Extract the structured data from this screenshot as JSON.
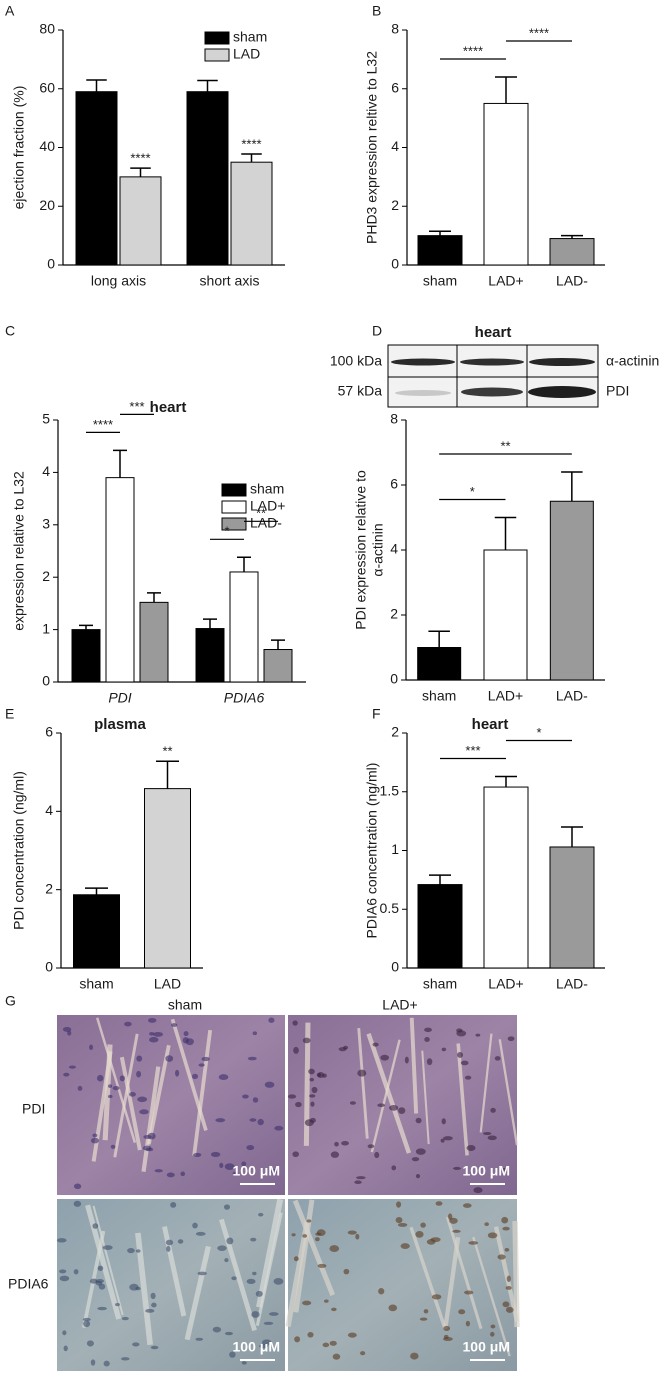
{
  "chart_data": [
    {
      "type": "bar",
      "panel": "A",
      "ylabel": "ejection fraction (%)",
      "categories": [
        "long axis",
        "short axis"
      ],
      "series": [
        {
          "name": "sham",
          "color": "#000000",
          "values": [
            59,
            59
          ],
          "errors": [
            4,
            3.8
          ]
        },
        {
          "name": "LAD",
          "color": "#d3d3d3",
          "values": [
            30,
            35
          ],
          "errors": [
            3,
            2.8
          ]
        }
      ],
      "ylim": [
        0,
        80
      ],
      "yticks": [
        0,
        20,
        40,
        60,
        80
      ],
      "legend": "upper right",
      "annotations": [
        {
          "text": "****",
          "category": 0,
          "series": 1
        },
        {
          "text": "****",
          "category": 1,
          "series": 1
        }
      ]
    },
    {
      "type": "bar",
      "panel": "B",
      "ylabel": "PHD3 expression reltive to L32",
      "categories": [
        "sham",
        "LAD+",
        "LAD-"
      ],
      "series": [
        {
          "colors": [
            "#000000",
            "#ffffff",
            "#9a9a9a"
          ],
          "values": [
            1,
            5.5,
            0.9
          ],
          "errors": [
            0.15,
            0.9,
            0.1
          ]
        }
      ],
      "ylim": [
        0,
        8
      ],
      "yticks": [
        0,
        2,
        4,
        6,
        8
      ],
      "annotations": [
        {
          "text": "****",
          "from": 0,
          "to": 1
        },
        {
          "text": "****",
          "from": 1,
          "to": 2
        }
      ]
    },
    {
      "type": "bar",
      "panel": "C",
      "title": "heart",
      "ylabel": "expression relative to L32",
      "categories": [
        "PDI",
        "PDIA6"
      ],
      "series": [
        {
          "name": "sham",
          "color": "#000000",
          "values": [
            1,
            1.02
          ],
          "errors": [
            0.08,
            0.18
          ]
        },
        {
          "name": "LAD+",
          "color": "#ffffff",
          "values": [
            3.9,
            2.1
          ],
          "errors": [
            0.52,
            0.28
          ]
        },
        {
          "name": "LAD-",
          "color": "#9a9a9a",
          "values": [
            1.52,
            0.62
          ],
          "errors": [
            0.18,
            0.18
          ]
        }
      ],
      "ylim": [
        0,
        5
      ],
      "yticks": [
        0,
        1,
        2,
        3,
        4,
        5
      ],
      "legend": "upper right",
      "annotations": [
        {
          "text": "****",
          "category": 0,
          "from": 0,
          "to": 1
        },
        {
          "text": "***",
          "category": 0,
          "from": 1,
          "to": 2
        },
        {
          "text": "*",
          "category": 1,
          "from": 0,
          "to": 1
        },
        {
          "text": "**",
          "category": 1,
          "from": 1,
          "to": 2
        }
      ]
    },
    {
      "type": "bar",
      "panel": "D",
      "title": "heart",
      "ylabel": [
        "PDI expression relative to",
        "α-actinin"
      ],
      "blot": [
        {
          "size": "100 kDa",
          "protein": "α-actinin"
        },
        {
          "size": "57 kDa",
          "protein": "PDI"
        }
      ],
      "categories": [
        "sham",
        "LAD+",
        "LAD-"
      ],
      "series": [
        {
          "colors": [
            "#000000",
            "#ffffff",
            "#9a9a9a"
          ],
          "values": [
            1,
            4,
            5.5
          ],
          "errors": [
            0.5,
            1,
            0.9
          ]
        }
      ],
      "ylim": [
        0,
        8
      ],
      "yticks": [
        0,
        2,
        4,
        6,
        8
      ],
      "annotations": [
        {
          "text": "*",
          "from": 0,
          "to": 1
        },
        {
          "text": "**",
          "from": 0,
          "to": 2
        }
      ]
    },
    {
      "type": "bar",
      "panel": "E",
      "title": "plasma",
      "ylabel": "PDI concentration (ng/ml)",
      "categories": [
        "sham",
        "LAD"
      ],
      "series": [
        {
          "colors": [
            "#000000",
            "#d3d3d3"
          ],
          "values": [
            1.87,
            4.58
          ],
          "errors": [
            0.17,
            0.7
          ]
        }
      ],
      "ylim": [
        0,
        6
      ],
      "yticks": [
        0,
        2,
        4,
        6
      ],
      "annotations": [
        {
          "text": "**",
          "category": 1,
          "series": 0
        }
      ]
    },
    {
      "type": "bar",
      "panel": "F",
      "title": "heart",
      "ylabel": "PDIA6 concentration (ng/ml)",
      "categories": [
        "sham",
        "LAD+",
        "LAD-"
      ],
      "series": [
        {
          "colors": [
            "#000000",
            "#ffffff",
            "#9a9a9a"
          ],
          "values": [
            0.71,
            1.54,
            1.03
          ],
          "errors": [
            0.08,
            0.09,
            0.17
          ]
        }
      ],
      "ylim": [
        0,
        2
      ],
      "yticks": [
        0,
        0.5,
        1,
        1.5,
        2
      ],
      "annotations": [
        {
          "text": "***",
          "from": 0,
          "to": 1
        },
        {
          "text": "*",
          "from": 1,
          "to": 2
        }
      ]
    }
  ],
  "figure_g": {
    "panel": "G",
    "columns": [
      "sham",
      "LAD+"
    ],
    "rows": [
      "PDI",
      "PDIA6"
    ],
    "scale_bar": "100 μM"
  }
}
